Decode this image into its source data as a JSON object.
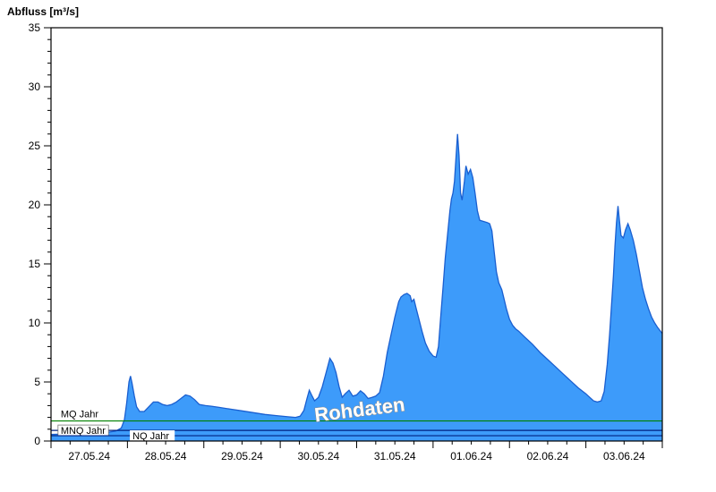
{
  "chart_data": {
    "type": "area",
    "title": "",
    "ylabel": "Abfluss [m³/s]",
    "xlabel": "",
    "ylim": [
      0,
      35
    ],
    "yticks": [
      0,
      5,
      10,
      15,
      20,
      25,
      30,
      35
    ],
    "x_range_days": 8,
    "x_tick_labels": [
      "27.05.24",
      "28.05.24",
      "29.05.24",
      "30.05.24",
      "31.05.24",
      "01.06.24",
      "02.06.24",
      "03.06.24"
    ],
    "grid": false,
    "legend": "none",
    "watermark": "Rohdaten",
    "colors": {
      "area_fill": "#3d9bfa",
      "area_stroke": "#1a5fd0",
      "frame": "#000000",
      "mq_line": "#008000",
      "mnq_line": "#002080",
      "nq_line": "#002080",
      "watermark_fill": "#ffffff",
      "watermark_outline": "#8a8a8a"
    },
    "reference_lines": [
      {
        "label": "MQ Jahr",
        "value": 1.7,
        "color": "#008000",
        "label_x_day": 0.08,
        "placement": "above"
      },
      {
        "label": "MNQ Jahr",
        "value": 0.9,
        "color": "#002080",
        "label_x_day": 0.08,
        "placement": "on",
        "boxed": true
      },
      {
        "label": "NQ Jahr",
        "value": 0.45,
        "color": "#002080",
        "label_x_day": 1.02,
        "placement": "on"
      }
    ],
    "series": [
      {
        "name": "Abfluss Rohdaten",
        "points": [
          [
            0,
            0.55
          ],
          [
            0.2,
            0.6
          ],
          [
            0.4,
            0.65
          ],
          [
            0.6,
            0.7
          ],
          [
            0.75,
            0.75
          ],
          [
            0.85,
            0.85
          ],
          [
            0.92,
            1.1
          ],
          [
            0.96,
            1.8
          ],
          [
            0.99,
            3.2
          ],
          [
            1.02,
            5.0
          ],
          [
            1.04,
            5.5
          ],
          [
            1.06,
            4.9
          ],
          [
            1.09,
            3.8
          ],
          [
            1.12,
            2.9
          ],
          [
            1.16,
            2.5
          ],
          [
            1.22,
            2.5
          ],
          [
            1.28,
            2.9
          ],
          [
            1.34,
            3.3
          ],
          [
            1.4,
            3.3
          ],
          [
            1.46,
            3.1
          ],
          [
            1.52,
            3.0
          ],
          [
            1.58,
            3.1
          ],
          [
            1.64,
            3.3
          ],
          [
            1.7,
            3.6
          ],
          [
            1.76,
            3.9
          ],
          [
            1.82,
            3.8
          ],
          [
            1.88,
            3.5
          ],
          [
            1.94,
            3.1
          ],
          [
            2.02,
            3.0
          ],
          [
            2.1,
            2.95
          ],
          [
            2.2,
            2.85
          ],
          [
            2.35,
            2.7
          ],
          [
            2.5,
            2.55
          ],
          [
            2.65,
            2.4
          ],
          [
            2.8,
            2.25
          ],
          [
            2.95,
            2.15
          ],
          [
            3.1,
            2.05
          ],
          [
            3.2,
            2.0
          ],
          [
            3.26,
            2.1
          ],
          [
            3.31,
            2.6
          ],
          [
            3.35,
            3.6
          ],
          [
            3.38,
            4.3
          ],
          [
            3.41,
            3.9
          ],
          [
            3.45,
            3.4
          ],
          [
            3.5,
            3.7
          ],
          [
            3.55,
            4.6
          ],
          [
            3.6,
            5.8
          ],
          [
            3.65,
            7.0
          ],
          [
            3.69,
            6.6
          ],
          [
            3.73,
            5.8
          ],
          [
            3.77,
            4.6
          ],
          [
            3.81,
            3.7
          ],
          [
            3.85,
            4.0
          ],
          [
            3.9,
            4.3
          ],
          [
            3.95,
            3.8
          ],
          [
            4.0,
            3.9
          ],
          [
            4.05,
            4.25
          ],
          [
            4.1,
            4.0
          ],
          [
            4.15,
            3.6
          ],
          [
            4.2,
            3.7
          ],
          [
            4.25,
            3.8
          ],
          [
            4.3,
            4.1
          ],
          [
            4.35,
            5.5
          ],
          [
            4.4,
            7.5
          ],
          [
            4.45,
            9.0
          ],
          [
            4.5,
            10.5
          ],
          [
            4.55,
            11.8
          ],
          [
            4.58,
            12.2
          ],
          [
            4.62,
            12.4
          ],
          [
            4.66,
            12.5
          ],
          [
            4.7,
            12.3
          ],
          [
            4.72,
            11.8
          ],
          [
            4.75,
            12.0
          ],
          [
            4.78,
            11.2
          ],
          [
            4.82,
            10.2
          ],
          [
            4.86,
            9.2
          ],
          [
            4.9,
            8.3
          ],
          [
            4.95,
            7.6
          ],
          [
            5.0,
            7.2
          ],
          [
            5.04,
            7.1
          ],
          [
            5.07,
            8.0
          ],
          [
            5.1,
            10.5
          ],
          [
            5.13,
            13.0
          ],
          [
            5.16,
            15.5
          ],
          [
            5.19,
            17.5
          ],
          [
            5.22,
            19.5
          ],
          [
            5.24,
            20.5
          ],
          [
            5.26,
            21.0
          ],
          [
            5.28,
            22.0
          ],
          [
            5.3,
            24.0
          ],
          [
            5.32,
            26.0
          ],
          [
            5.34,
            24.2
          ],
          [
            5.36,
            21.0
          ],
          [
            5.38,
            20.4
          ],
          [
            5.41,
            22.0
          ],
          [
            5.43,
            23.3
          ],
          [
            5.46,
            22.6
          ],
          [
            5.49,
            23.0
          ],
          [
            5.52,
            22.3
          ],
          [
            5.55,
            21.0
          ],
          [
            5.58,
            19.5
          ],
          [
            5.61,
            18.7
          ],
          [
            5.66,
            18.6
          ],
          [
            5.71,
            18.5
          ],
          [
            5.74,
            18.4
          ],
          [
            5.77,
            17.8
          ],
          [
            5.8,
            16.0
          ],
          [
            5.83,
            14.3
          ],
          [
            5.86,
            13.4
          ],
          [
            5.9,
            12.8
          ],
          [
            5.93,
            12.0
          ],
          [
            5.96,
            11.2
          ],
          [
            6.0,
            10.3
          ],
          [
            6.04,
            9.8
          ],
          [
            6.08,
            9.5
          ],
          [
            6.12,
            9.3
          ],
          [
            6.2,
            8.8
          ],
          [
            6.3,
            8.2
          ],
          [
            6.4,
            7.5
          ],
          [
            6.5,
            6.9
          ],
          [
            6.6,
            6.3
          ],
          [
            6.7,
            5.7
          ],
          [
            6.8,
            5.1
          ],
          [
            6.9,
            4.5
          ],
          [
            7.0,
            4.0
          ],
          [
            7.05,
            3.7
          ],
          [
            7.1,
            3.4
          ],
          [
            7.15,
            3.3
          ],
          [
            7.2,
            3.4
          ],
          [
            7.24,
            4.2
          ],
          [
            7.28,
            6.5
          ],
          [
            7.31,
            9.0
          ],
          [
            7.34,
            12.0
          ],
          [
            7.36,
            14.0
          ],
          [
            7.38,
            16.5
          ],
          [
            7.4,
            18.5
          ],
          [
            7.42,
            19.9
          ],
          [
            7.44,
            18.6
          ],
          [
            7.46,
            17.4
          ],
          [
            7.49,
            17.2
          ],
          [
            7.52,
            17.9
          ],
          [
            7.55,
            18.4
          ],
          [
            7.58,
            17.9
          ],
          [
            7.62,
            17.0
          ],
          [
            7.66,
            15.8
          ],
          [
            7.7,
            14.4
          ],
          [
            7.74,
            13.0
          ],
          [
            7.78,
            12.0
          ],
          [
            7.82,
            11.2
          ],
          [
            7.86,
            10.5
          ],
          [
            7.9,
            10.0
          ],
          [
            7.94,
            9.6
          ],
          [
            8.0,
            9.1
          ]
        ]
      }
    ]
  }
}
